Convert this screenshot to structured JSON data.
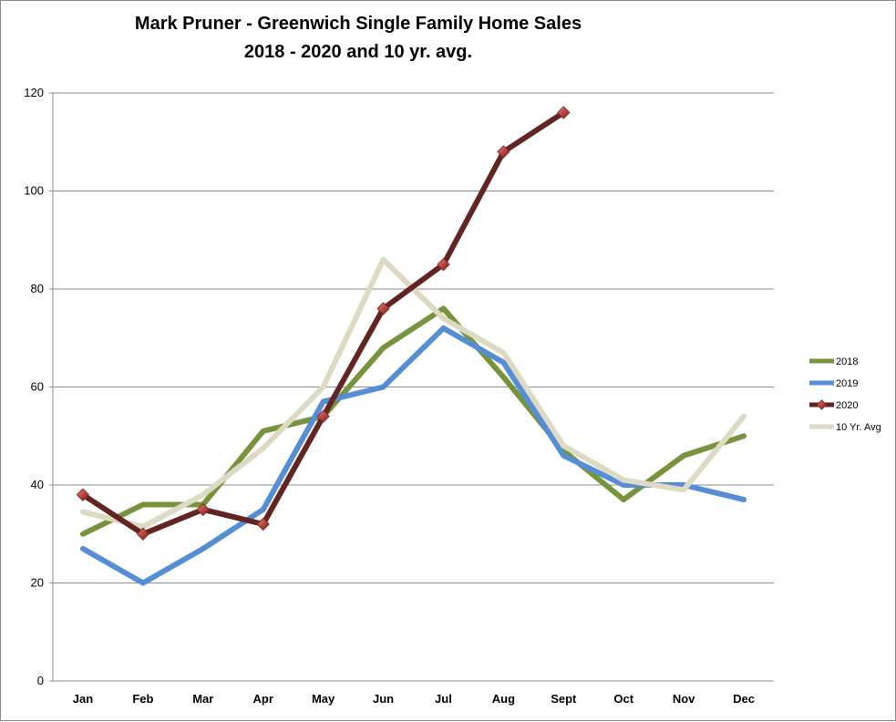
{
  "chart_data": {
    "type": "line",
    "title": "Mark Pruner - Greenwich Single Family Home Sales",
    "subtitle": "2018 - 2020 and 10 yr. avg.",
    "xlabel": "",
    "ylabel": "",
    "categories": [
      "Jan",
      "Feb",
      "Mar",
      "Apr",
      "May",
      "Jun",
      "Jul",
      "Aug",
      "Sept",
      "Oct",
      "Nov",
      "Dec"
    ],
    "yticks": [
      0,
      20,
      40,
      60,
      80,
      100,
      120
    ],
    "ylim": [
      0,
      120
    ],
    "grid": true,
    "legend_position": "right",
    "series": [
      {
        "name": "2018",
        "color": "#77933c",
        "marker": "none",
        "values": [
          30,
          36,
          36,
          51,
          54,
          68,
          76,
          62,
          47,
          37,
          46,
          50
        ]
      },
      {
        "name": "2019",
        "color": "#558ed5",
        "marker": "none",
        "values": [
          27,
          20,
          27,
          35,
          57,
          60,
          72,
          65,
          46,
          40,
          40,
          37
        ]
      },
      {
        "name": "2020",
        "color": "#632523",
        "marker": "diamond",
        "values": [
          38,
          30,
          35,
          32,
          54,
          76,
          85,
          108,
          116,
          null,
          null,
          null
        ]
      },
      {
        "name": "10 Yr. Avg",
        "color": "#ddd9c3",
        "marker": "none",
        "values": [
          34.5,
          31.5,
          38,
          47.5,
          60,
          86,
          74,
          67,
          48,
          41,
          39,
          54
        ]
      }
    ]
  }
}
